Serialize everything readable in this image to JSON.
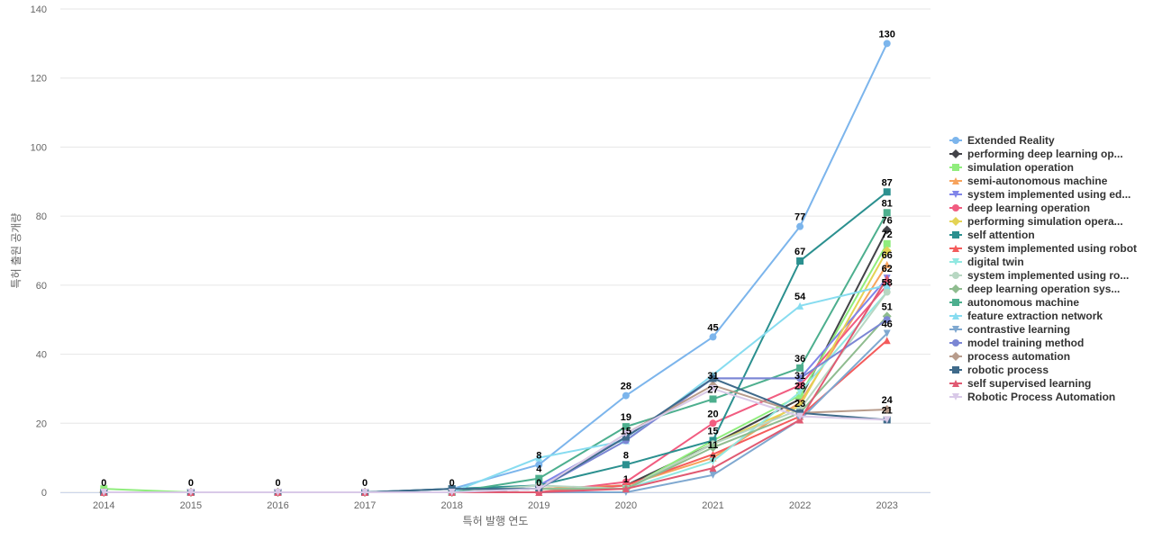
{
  "chart_data": {
    "type": "line",
    "xlabel": "특허 발행 연도",
    "ylabel": "특허 출원 공개량",
    "ylim": [
      0,
      140
    ],
    "yticks": [
      0,
      20,
      40,
      60,
      80,
      100,
      120,
      140
    ],
    "categories": [
      "2014",
      "2015",
      "2016",
      "2017",
      "2018",
      "2019",
      "2020",
      "2021",
      "2022",
      "2023"
    ],
    "grid": true,
    "legend_position": "right",
    "series": [
      {
        "name": "Extended Reality",
        "color": "#7cb5ec",
        "marker": "circle",
        "values": [
          0,
          0,
          0,
          0,
          1,
          8,
          28,
          45,
          77,
          130
        ]
      },
      {
        "name": "performing deep learning op...",
        "color": "#434348",
        "marker": "diamond",
        "values": [
          0,
          0,
          0,
          0,
          0,
          1,
          2,
          14,
          27,
          76
        ]
      },
      {
        "name": "simulation operation",
        "color": "#90ed7d",
        "marker": "square",
        "values": [
          1,
          0,
          0,
          0,
          0,
          1,
          1,
          15,
          28,
          72
        ]
      },
      {
        "name": "semi-autonomous machine",
        "color": "#f7a35c",
        "marker": "triangle",
        "values": [
          0,
          0,
          0,
          0,
          0,
          1,
          2,
          10,
          26,
          66
        ]
      },
      {
        "name": "system implemented using ed...",
        "color": "#8085e9",
        "marker": "triangle-down",
        "values": [
          0,
          0,
          0,
          0,
          0,
          2,
          16,
          33,
          33,
          62
        ]
      },
      {
        "name": "deep learning operation",
        "color": "#f15c80",
        "marker": "circle",
        "values": [
          0,
          0,
          0,
          0,
          0,
          0,
          3,
          20,
          31,
          60
        ]
      },
      {
        "name": "performing simulation opera...",
        "color": "#e4d354",
        "marker": "diamond",
        "values": [
          0,
          0,
          0,
          0,
          0,
          1,
          1,
          14,
          25,
          70
        ]
      },
      {
        "name": "self attention",
        "color": "#2b908f",
        "marker": "square",
        "values": [
          0,
          0,
          0,
          0,
          1,
          2,
          8,
          15,
          67,
          87
        ]
      },
      {
        "name": "system implemented using robot",
        "color": "#f45b5b",
        "marker": "triangle",
        "values": [
          0,
          0,
          0,
          0,
          0,
          0,
          2,
          11,
          22,
          44
        ]
      },
      {
        "name": "digital twin",
        "color": "#91e8e1",
        "marker": "triangle-down",
        "values": [
          0,
          0,
          0,
          0,
          0,
          1,
          1,
          9,
          29,
          58
        ]
      },
      {
        "name": "system implemented using ro...",
        "color": "#b7d7c2",
        "marker": "circle",
        "values": [
          0,
          0,
          0,
          0,
          0,
          2,
          1,
          14,
          24,
          58
        ]
      },
      {
        "name": "deep learning operation sys...",
        "color": "#8fbc8f",
        "marker": "diamond",
        "values": [
          0,
          0,
          0,
          0,
          0,
          1,
          1,
          13,
          23,
          51
        ]
      },
      {
        "name": "autonomous machine",
        "color": "#4daf8e",
        "marker": "square",
        "values": [
          0,
          0,
          0,
          0,
          0,
          4,
          19,
          27,
          36,
          81
        ]
      },
      {
        "name": "feature extraction network",
        "color": "#87dcf0",
        "marker": "triangle",
        "values": [
          0,
          0,
          0,
          0,
          0,
          10,
          15,
          34,
          54,
          60
        ]
      },
      {
        "name": "contrastive learning",
        "color": "#7fa8d0",
        "marker": "triangle-down",
        "values": [
          0,
          0,
          0,
          0,
          0,
          0,
          0,
          5,
          21,
          46
        ]
      },
      {
        "name": "model training method",
        "color": "#7b86d4",
        "marker": "circle",
        "values": [
          0,
          0,
          0,
          0,
          0,
          1,
          15,
          33,
          33,
          50
        ]
      },
      {
        "name": "process automation",
        "color": "#b89c8c",
        "marker": "diamond",
        "values": [
          0,
          0,
          0,
          0,
          0,
          1,
          17,
          31,
          23,
          24
        ]
      },
      {
        "name": "robotic process",
        "color": "#3f6a8a",
        "marker": "square",
        "values": [
          0,
          0,
          0,
          0,
          1,
          1,
          16,
          33,
          23,
          21
        ]
      },
      {
        "name": "self supervised learning",
        "color": "#e05a72",
        "marker": "triangle",
        "values": [
          0,
          0,
          0,
          0,
          0,
          0,
          1,
          7,
          21,
          62
        ]
      },
      {
        "name": "Robotic Process Automation",
        "color": "#d9c9e8",
        "marker": "triangle-down",
        "values": [
          0,
          0,
          0,
          0,
          0,
          1,
          17,
          30,
          22,
          21
        ]
      }
    ],
    "data_labels": [
      {
        "x": "2014",
        "text": "0"
      },
      {
        "x": "2015",
        "text": "0"
      },
      {
        "x": "2016",
        "text": "0"
      },
      {
        "x": "2017",
        "text": "0"
      },
      {
        "x": "2018",
        "text": "0"
      },
      {
        "x": "2019",
        "text": "8",
        "y": 8
      },
      {
        "x": "2019",
        "text": "4",
        "y": 4
      },
      {
        "x": "2019",
        "text": "0",
        "y": 0
      },
      {
        "x": "2020",
        "text": "28",
        "y": 28
      },
      {
        "x": "2020",
        "text": "19",
        "y": 19
      },
      {
        "x": "2020",
        "text": "15",
        "y": 15
      },
      {
        "x": "2020",
        "text": "8",
        "y": 8
      },
      {
        "x": "2020",
        "text": "1",
        "y": 1
      },
      {
        "x": "2021",
        "text": "45",
        "y": 45
      },
      {
        "x": "2021",
        "text": "31",
        "y": 31
      },
      {
        "x": "2021",
        "text": "27",
        "y": 27
      },
      {
        "x": "2021",
        "text": "20",
        "y": 20
      },
      {
        "x": "2021",
        "text": "15",
        "y": 15
      },
      {
        "x": "2021",
        "text": "11",
        "y": 11
      },
      {
        "x": "2021",
        "text": "7",
        "y": 7
      },
      {
        "x": "2022",
        "text": "77",
        "y": 77
      },
      {
        "x": "2022",
        "text": "67",
        "y": 67
      },
      {
        "x": "2022",
        "text": "54",
        "y": 54
      },
      {
        "x": "2022",
        "text": "36",
        "y": 36
      },
      {
        "x": "2022",
        "text": "31",
        "y": 31
      },
      {
        "x": "2022",
        "text": "28",
        "y": 28
      },
      {
        "x": "2022",
        "text": "23",
        "y": 23
      },
      {
        "x": "2023",
        "text": "130",
        "y": 130
      },
      {
        "x": "2023",
        "text": "87",
        "y": 87
      },
      {
        "x": "2023",
        "text": "81",
        "y": 81
      },
      {
        "x": "2023",
        "text": "76",
        "y": 76
      },
      {
        "x": "2023",
        "text": "72",
        "y": 72
      },
      {
        "x": "2023",
        "text": "66",
        "y": 66
      },
      {
        "x": "2023",
        "text": "62",
        "y": 62
      },
      {
        "x": "2023",
        "text": "58",
        "y": 58
      },
      {
        "x": "2023",
        "text": "51",
        "y": 51
      },
      {
        "x": "2023",
        "text": "46",
        "y": 46
      },
      {
        "x": "2023",
        "text": "24",
        "y": 24
      },
      {
        "x": "2023",
        "text": "21",
        "y": 21
      }
    ]
  }
}
